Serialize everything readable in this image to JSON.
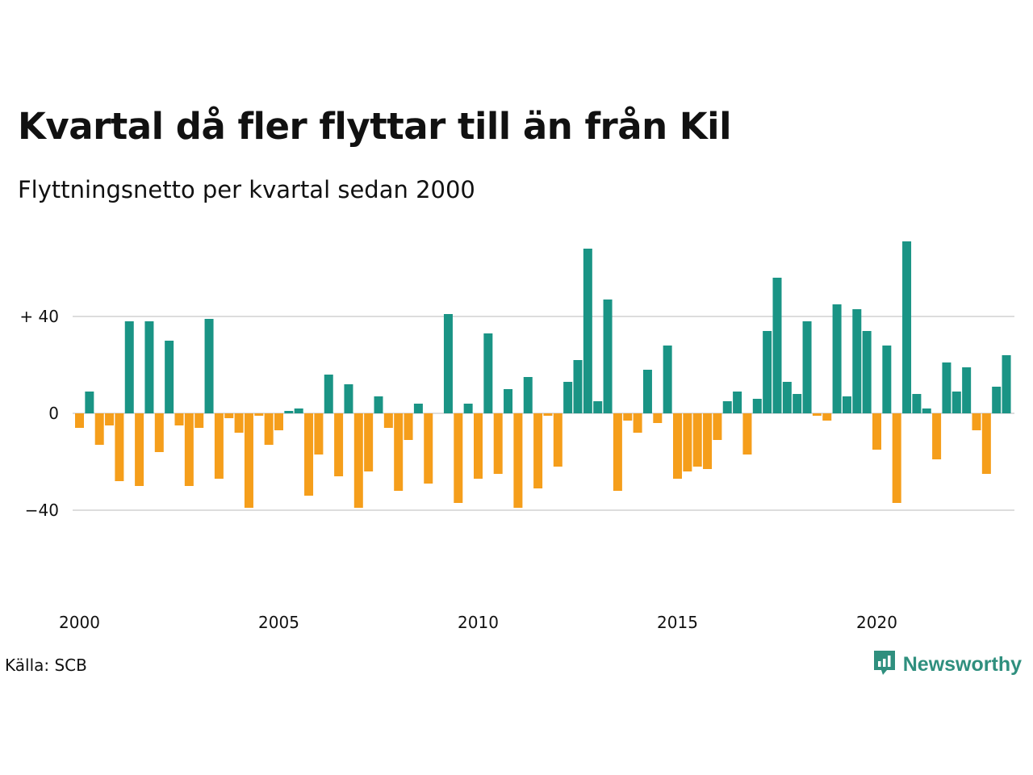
{
  "title": "Kvartal då fler flyttar till än från Kil",
  "subtitle": "Flyttningsnetto per kvartal sedan 2000",
  "source": "Källa: SCB",
  "brand": {
    "name": "Newsworthy",
    "icon": "newsworthy-logo-icon"
  },
  "colors": {
    "positive": "#1a9485",
    "negative": "#f59e1b",
    "grid": "#dddddd"
  },
  "chart_data": {
    "type": "bar",
    "title": "Kvartal då fler flyttar till än från Kil",
    "subtitle": "Flyttningsnetto per kvartal sedan 2000",
    "xlabel": "",
    "ylabel": "",
    "ylim": [
      -75,
      75
    ],
    "y_ticks": [
      {
        "value": 40,
        "label": "+ 40"
      },
      {
        "value": 0,
        "label": "0"
      },
      {
        "value": -40,
        "label": "−40"
      }
    ],
    "x_ticks": [
      {
        "value": 2000,
        "label": "2000"
      },
      {
        "value": 2005,
        "label": "2005"
      },
      {
        "value": 2010,
        "label": "2010"
      },
      {
        "value": 2015,
        "label": "2015"
      },
      {
        "value": 2020,
        "label": "2020"
      }
    ],
    "grid": true,
    "start_year": 2000,
    "periods_per_year": 4,
    "values": [
      -6,
      9,
      -13,
      -5,
      -28,
      38,
      -30,
      38,
      -16,
      30,
      -5,
      -30,
      -6,
      39,
      -27,
      -2,
      -8,
      -39,
      -1,
      -13,
      -7,
      1,
      2,
      -34,
      -17,
      16,
      -26,
      12,
      -39,
      -24,
      7,
      -6,
      -32,
      -11,
      4,
      -29,
      0,
      41,
      -37,
      4,
      -27,
      33,
      -25,
      10,
      -39,
      15,
      -31,
      -1,
      -22,
      13,
      22,
      68,
      5,
      47,
      -32,
      -3,
      -8,
      18,
      -4,
      28,
      -27,
      -24,
      -22,
      -23,
      -11,
      5,
      9,
      -17,
      6,
      34,
      56,
      13,
      8,
      38,
      -1,
      -3,
      45,
      7,
      43,
      34,
      -15,
      28,
      -37,
      71,
      8,
      2,
      -19,
      21,
      9,
      19,
      -7,
      -25,
      11,
      24
    ]
  }
}
